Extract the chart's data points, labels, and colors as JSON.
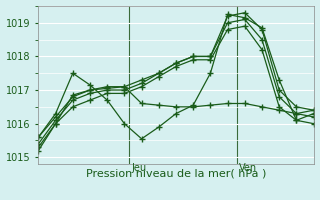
{
  "title": "",
  "xlabel": "Pression niveau de la mer( hPa )",
  "ylabel": "",
  "bg_color": "#d6f0f0",
  "grid_color": "#ffffff",
  "line_color": "#1a5c1a",
  "marker_color": "#1a5c1a",
  "ylim": [
    1014.8,
    1019.5
  ],
  "yticks": [
    1015,
    1016,
    1017,
    1018,
    1019
  ],
  "day_labels": [
    "Jeu",
    "Ven"
  ],
  "day_positions": [
    0.33,
    0.72
  ],
  "lines": [
    [
      1015.6,
      1016.2,
      1016.8,
      1017.0,
      1017.1,
      1017.1,
      1017.3,
      1017.5,
      1017.8,
      1018.0,
      1018.0,
      1019.2,
      1019.3,
      1018.8,
      1017.0,
      1016.5,
      1016.4
    ],
    [
      1015.4,
      1016.1,
      1016.7,
      1016.9,
      1017.0,
      1017.0,
      1017.2,
      1017.5,
      1017.8,
      1018.0,
      1018.0,
      1019.0,
      1019.1,
      1018.5,
      1016.8,
      1016.3,
      1016.2
    ],
    [
      1015.2,
      1016.0,
      1016.5,
      1016.7,
      1016.9,
      1016.9,
      1017.1,
      1017.4,
      1017.7,
      1017.9,
      1017.9,
      1018.8,
      1018.9,
      1018.2,
      1016.5,
      1016.1,
      1016.0
    ],
    [
      1015.3,
      1016.0,
      1016.85,
      1017.0,
      1017.05,
      1017.1,
      1016.6,
      1016.55,
      1016.5,
      1016.5,
      1016.55,
      1016.6,
      1016.6,
      1016.5,
      1016.4,
      1016.3,
      1016.4
    ],
    [
      1015.6,
      1016.3,
      1017.5,
      1017.15,
      1016.7,
      1016.0,
      1015.55,
      1015.9,
      1016.3,
      1016.55,
      1017.5,
      1019.25,
      1019.15,
      1018.85,
      1017.3,
      1016.1,
      1016.3
    ]
  ]
}
